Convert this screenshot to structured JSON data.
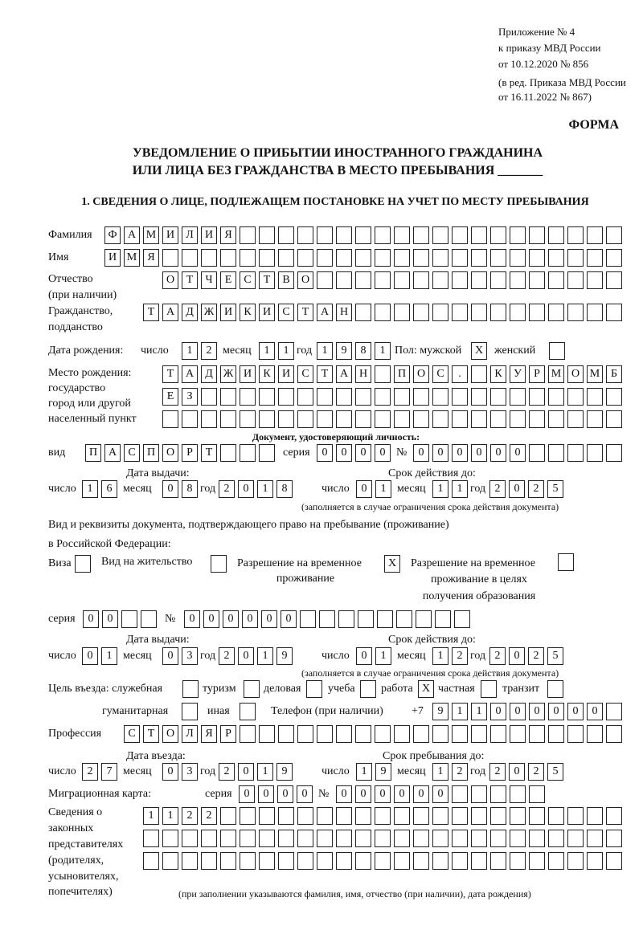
{
  "header": {
    "appendix": [
      "Приложение № 4",
      "к приказу МВД России",
      "от 10.12.2020 № 856"
    ],
    "edition": [
      "(в ред. Приказа МВД России",
      "от 16.11.2022 № 867)"
    ],
    "form_label": "ФОРМА",
    "title_line1": "УВЕДОМЛЕНИЕ О ПРИБЫТИИ ИНОСТРАННОГО ГРАЖДАНИНА",
    "title_line2": "ИЛИ ЛИЦА БЕЗ ГРАЖДАНСТВА В МЕСТО ПРЕБЫВАНИЯ _______",
    "section1": "1. СВЕДЕНИЯ О ЛИЦЕ, ПОДЛЕЖАЩЕМ ПОСТАНОВКЕ НА УЧЕТ ПО МЕСТУ ПРЕБЫВАНИЯ"
  },
  "labels": {
    "surname": "Фамилия",
    "name": "Имя",
    "patronymic1": "Отчество",
    "patronymic2": "(при наличии)",
    "citizenship1": "Гражданство,",
    "citizenship2": "подданство",
    "birth_date": "Дата рождения:",
    "day": "число",
    "month": "месяц",
    "year": "год",
    "sex": "Пол: мужской",
    "female": "женский",
    "birthplace1": "Место рождения:",
    "birthplace2": "государство",
    "birthplace3": "город или другой",
    "birthplace4": "населенный пункт",
    "id_doc": "Документ, удостоверяющий личность:",
    "kind": "вид",
    "series": "серия",
    "number": "№",
    "issue_date": "Дата выдачи:",
    "valid_until": "Срок действия до:",
    "validity_note": "(заполняется в случае ограничения срока действия документа)",
    "right_doc1": "Вид и реквизиты документа, подтверждающего право на пребывание (проживание)",
    "right_doc2": "в Российской Федерации:",
    "visa": "Виза",
    "residence": "Вид на жительство",
    "trp1": "Разрешение на временное",
    "trp2": "проживание",
    "trp_edu1": "Разрешение на временное",
    "trp_edu2": "проживание в целях",
    "trp_edu3": "получения образования",
    "purpose": "Цель въезда: служебная",
    "tourism": "туризм",
    "business": "деловая",
    "study": "учеба",
    "work": "работа",
    "private": "частная",
    "transit": "транзит",
    "humanitarian": "гуманитарная",
    "other": "иная",
    "phone": "Телефон (при наличии)",
    "phone_prefix": "+7",
    "profession": "Профессия",
    "entry_date": "Дата въезда:",
    "stay_until": "Срок пребывания до:",
    "migration_card": "Миграционная карта:",
    "reps": [
      "Сведения о",
      "законных",
      "представителях",
      "(родителях,",
      "усыновителях,",
      "попечителях)"
    ],
    "reps_note": "(при заполнении указываются фамилия, имя, отчество (при наличии), дата рождения)"
  },
  "person": {
    "surname": [
      "Ф",
      "А",
      "М",
      "И",
      "Л",
      "И",
      "Я"
    ],
    "name": [
      "И",
      "М",
      "Я"
    ],
    "patronymic": [
      "О",
      "Т",
      "Ч",
      "Е",
      "С",
      "Т",
      "В",
      "О"
    ],
    "citizenship": [
      "Т",
      "А",
      "Д",
      "Ж",
      "И",
      "К",
      "И",
      "С",
      "Т",
      "А",
      "Н"
    ],
    "birth_day": [
      "1",
      "2"
    ],
    "birth_month": [
      "1",
      "1"
    ],
    "birth_year": [
      "1",
      "9",
      "8",
      "1"
    ],
    "sex_male": [
      "X"
    ],
    "sex_female": [
      ""
    ],
    "birthplace_row1": [
      "Т",
      "А",
      "Д",
      "Ж",
      "И",
      "К",
      "И",
      "С",
      "Т",
      "А",
      "Н",
      "",
      "П",
      "О",
      "С",
      ".",
      "",
      "К",
      "У",
      "Р",
      "М",
      "О",
      "М",
      "Б"
    ],
    "birthplace_row2": [
      "Е",
      "З"
    ],
    "birthplace_row3": []
  },
  "id_document": {
    "kind": [
      "П",
      "А",
      "С",
      "П",
      "О",
      "Р",
      "Т"
    ],
    "series": [
      "0",
      "0",
      "0",
      "0"
    ],
    "number": [
      "0",
      "0",
      "0",
      "0",
      "0",
      "0"
    ],
    "issue_day": [
      "1",
      "6"
    ],
    "issue_month": [
      "0",
      "8"
    ],
    "issue_year": [
      "2",
      "0",
      "1",
      "8"
    ],
    "valid_day": [
      "0",
      "1"
    ],
    "valid_month": [
      "1",
      "1"
    ],
    "valid_year": [
      "2",
      "0",
      "2",
      "5"
    ]
  },
  "right_document": {
    "visa": [
      ""
    ],
    "residence": [
      ""
    ],
    "trp": [
      "X"
    ],
    "trp_edu": [
      ""
    ],
    "series": [
      "0",
      "0"
    ],
    "number": [
      "0",
      "0",
      "0",
      "0",
      "0",
      "0"
    ],
    "issue_day": [
      "0",
      "1"
    ],
    "issue_month": [
      "0",
      "3"
    ],
    "issue_year": [
      "2",
      "0",
      "1",
      "9"
    ],
    "valid_day": [
      "0",
      "1"
    ],
    "valid_month": [
      "1",
      "2"
    ],
    "valid_year": [
      "2",
      "0",
      "2",
      "5"
    ]
  },
  "purpose": {
    "official": [
      ""
    ],
    "tourism": [
      ""
    ],
    "business": [
      ""
    ],
    "study": [
      ""
    ],
    "work": [
      "X"
    ],
    "private": [
      ""
    ],
    "transit": [
      ""
    ],
    "humanitarian": [
      ""
    ],
    "other": [
      ""
    ]
  },
  "phone": [
    "9",
    "1",
    "1",
    "0",
    "0",
    "0",
    "0",
    "0",
    "0"
  ],
  "profession": [
    "С",
    "Т",
    "О",
    "Л",
    "Я",
    "Р"
  ],
  "entry": {
    "entry_day": [
      "2",
      "7"
    ],
    "entry_month": [
      "0",
      "3"
    ],
    "entry_year": [
      "2",
      "0",
      "1",
      "9"
    ],
    "stay_day": [
      "1",
      "9"
    ],
    "stay_month": [
      "1",
      "2"
    ],
    "stay_year": [
      "2",
      "0",
      "2",
      "5"
    ]
  },
  "migration_card": {
    "series": [
      "0",
      "0",
      "0",
      "0"
    ],
    "number": [
      "0",
      "0",
      "0",
      "0",
      "0",
      "0"
    ]
  },
  "representatives": {
    "row1": [
      "1",
      "1",
      "2",
      "2"
    ],
    "row2": [],
    "row3": []
  }
}
